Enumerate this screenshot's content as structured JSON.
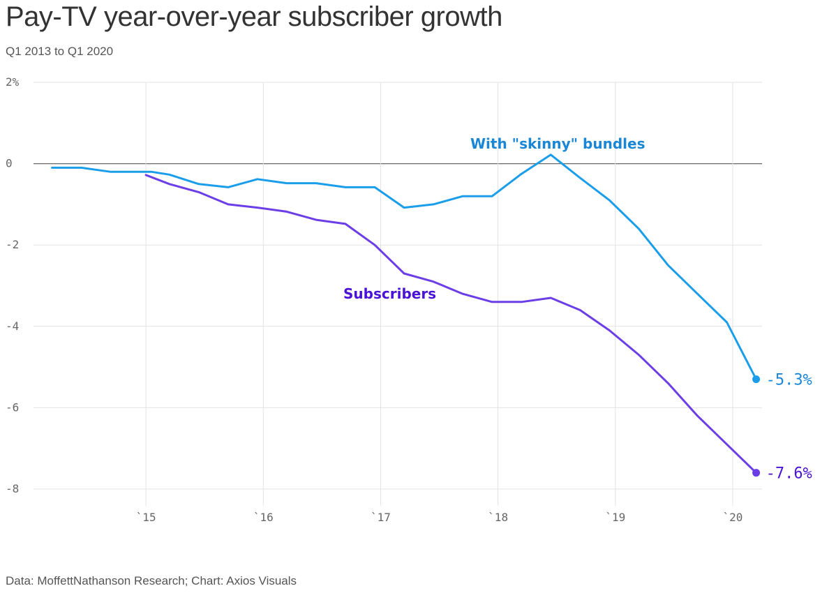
{
  "header": {
    "title": "Pay-TV year-over-year subscriber growth",
    "subtitle": "Q1 2013 to Q1 2020"
  },
  "footer": {
    "source": "Data: MoffettNathanson Research; Chart: Axios Visuals"
  },
  "chart_data": {
    "type": "line",
    "title": "Pay-TV year-over-year subscriber growth",
    "subtitle": "Q1 2013 to Q1 2020",
    "xlabel": "",
    "ylabel": "",
    "xlim": [
      2014.1,
      2020.2
    ],
    "ylim": [
      -8,
      2
    ],
    "y_ticks": [
      {
        "value": 2,
        "label": "2%"
      },
      {
        "value": 0,
        "label": "0"
      },
      {
        "value": -2,
        "label": "-2"
      },
      {
        "value": -4,
        "label": "-4"
      },
      {
        "value": -6,
        "label": "-6"
      },
      {
        "value": -8,
        "label": "-8"
      }
    ],
    "x_ticks": [
      {
        "value": 2014.95,
        "label": "`15"
      },
      {
        "value": 2015.95,
        "label": "`16"
      },
      {
        "value": 2016.95,
        "label": "`17"
      },
      {
        "value": 2017.95,
        "label": "`18"
      },
      {
        "value": 2018.95,
        "label": "`19"
      },
      {
        "value": 2019.95,
        "label": "`20"
      }
    ],
    "grid": true,
    "legend": "inline labels",
    "colors": {
      "skinny": "#1a9eea",
      "subscribers": "#6c3ee6",
      "skinny_label": "#1a86d6",
      "subscribers_label": "#4a12d6",
      "zero_line": "#666666",
      "grid": "#e3e3e3"
    },
    "series": [
      {
        "name": "With \"skinny\" bundles",
        "key": "skinny",
        "label": "With \"skinny\" bundles",
        "end_label": "-5.3%",
        "x": [
          2014.15,
          2014.4,
          2014.65,
          2014.9,
          2015.0,
          2015.15,
          2015.4,
          2015.65,
          2015.9,
          2016.15,
          2016.4,
          2016.65,
          2016.9,
          2017.15,
          2017.4,
          2017.65,
          2017.9,
          2018.15,
          2018.4,
          2018.65,
          2018.9,
          2019.15,
          2019.4,
          2019.65,
          2019.9,
          2020.15
        ],
        "values": [
          -0.1,
          -0.1,
          -0.2,
          -0.2,
          -0.2,
          -0.27,
          -0.5,
          -0.58,
          -0.38,
          -0.48,
          -0.48,
          -0.58,
          -0.58,
          -1.08,
          -1.0,
          -0.8,
          -0.8,
          -0.25,
          0.22,
          -0.35,
          -0.9,
          -1.6,
          -2.5,
          -3.2,
          -3.9,
          -5.3
        ]
      },
      {
        "name": "Subscribers",
        "key": "subscribers",
        "label": "Subscribers",
        "end_label": "-7.6%",
        "x": [
          2014.95,
          2015.15,
          2015.4,
          2015.65,
          2015.9,
          2016.15,
          2016.4,
          2016.65,
          2016.9,
          2017.15,
          2017.4,
          2017.65,
          2017.9,
          2018.15,
          2018.4,
          2018.65,
          2018.9,
          2019.15,
          2019.4,
          2019.65,
          2019.9,
          2020.15
        ],
        "values": [
          -0.28,
          -0.5,
          -0.7,
          -1.0,
          -1.08,
          -1.18,
          -1.38,
          -1.48,
          -2.0,
          -2.7,
          -2.9,
          -3.2,
          -3.4,
          -3.4,
          -3.3,
          -3.6,
          -4.1,
          -4.7,
          -5.4,
          -6.2,
          -6.9,
          -7.6
        ]
      }
    ]
  }
}
